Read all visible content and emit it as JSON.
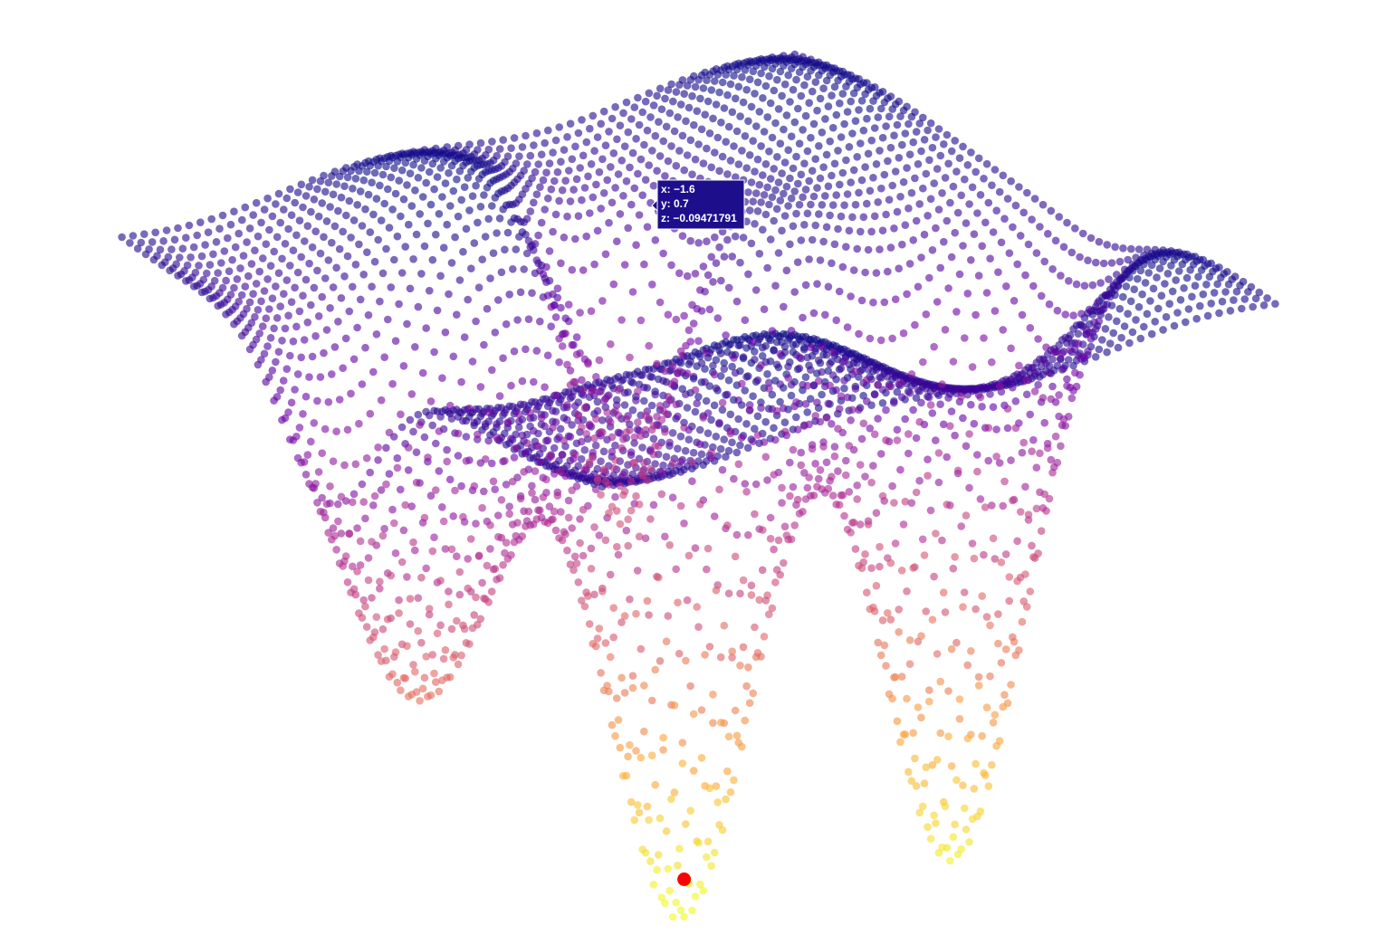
{
  "chart_data": {
    "type": "scatter3d",
    "surface": "hills and wells: three gaussian wells on a ridged plateau, sampled on a regular x-y grid",
    "x_range": [
      -3,
      3
    ],
    "y_range": [
      -3,
      3
    ],
    "z_range": [
      -0.95,
      0.0
    ],
    "colorscale": [
      "#0d0887",
      "#6a00a8",
      "#b12a90",
      "#e16462",
      "#fca636",
      "#f0f921"
    ],
    "marker_opacity": 0.6,
    "axes_visible": false,
    "grid": false,
    "legend": "none",
    "minimum_point": {
      "x": -0.2,
      "y": 0.1,
      "z": -0.93,
      "color": "#ff0000"
    },
    "hover": {
      "x": -1.6,
      "y": 0.7,
      "z": -0.09471791,
      "x_text": "x: −1.6",
      "y_text": "y: 0.7",
      "z_text": "z: −0.09471791",
      "background": "#1d0e8c"
    }
  }
}
